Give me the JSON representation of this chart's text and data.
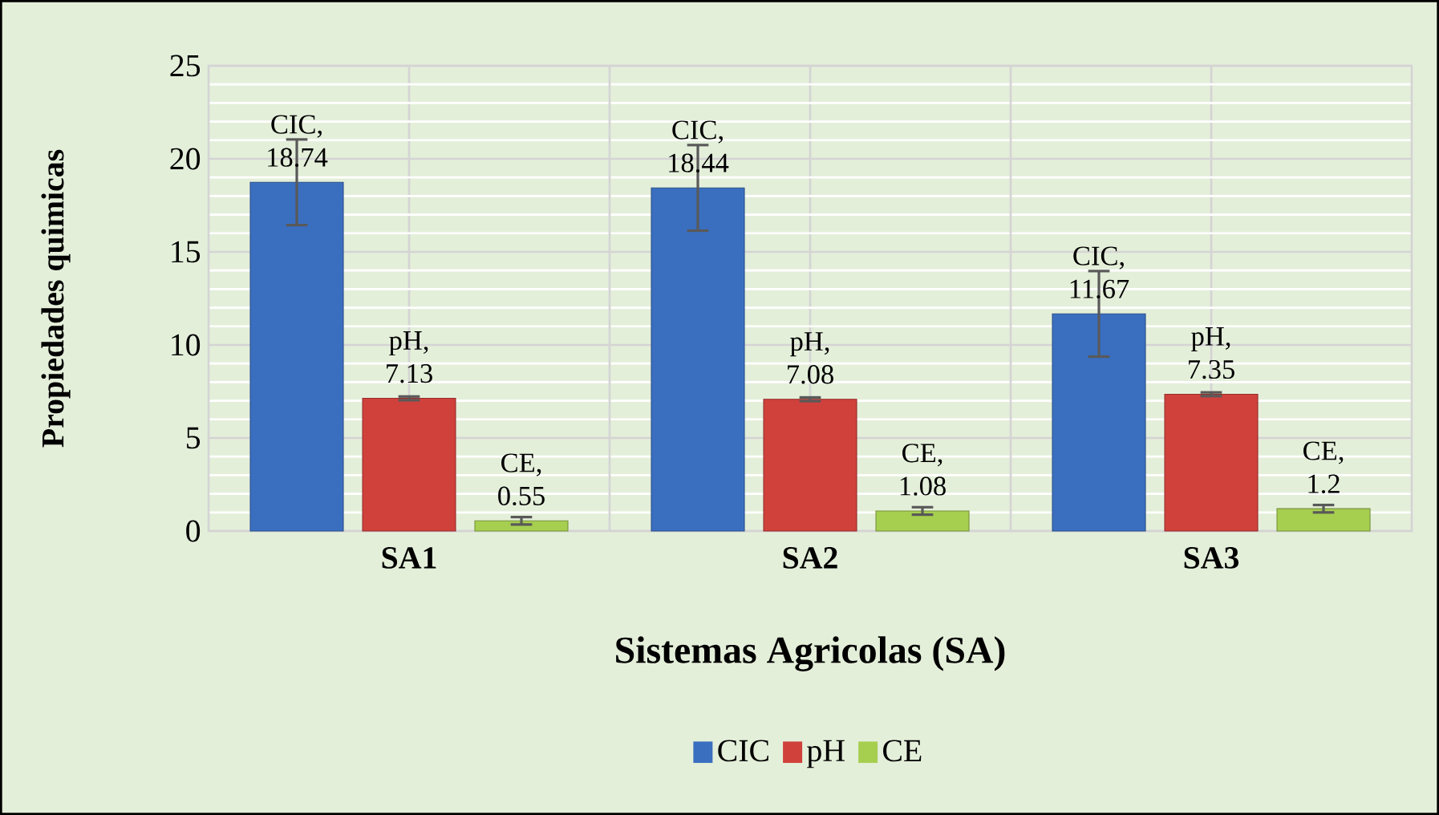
{
  "chart_data": {
    "type": "bar",
    "xlabel": "Sistemas Agricolas (SA)",
    "ylabel": "Propiedades quimicas",
    "categories": [
      "SA1",
      "SA2",
      "SA3"
    ],
    "series": [
      {
        "name": "CIC",
        "color": "#3a6fc0",
        "values": [
          18.74,
          18.44,
          11.67
        ],
        "errors": [
          2.3,
          2.3,
          2.3
        ],
        "value_labels": [
          "CIC, 18.74",
          "CIC, 18.44",
          "CIC, 11.67"
        ]
      },
      {
        "name": "pH",
        "color": "#d0413c",
        "values": [
          7.13,
          7.08,
          7.35
        ],
        "errors": [
          0.1,
          0.1,
          0.1
        ],
        "value_labels": [
          "pH, 7.13",
          "pH, 7.08",
          "pH, 7.35"
        ]
      },
      {
        "name": "CE",
        "color": "#a6cf50",
        "values": [
          0.55,
          1.08,
          1.2
        ],
        "errors": [
          0.2,
          0.2,
          0.2
        ],
        "value_labels": [
          "CE, 0.55",
          "CE, 1.08",
          "CE, 1.2"
        ]
      }
    ],
    "ylim": [
      0,
      25
    ],
    "yticks": [
      0,
      5,
      10,
      15,
      20,
      25
    ],
    "grid": true,
    "legend": "bottom"
  }
}
